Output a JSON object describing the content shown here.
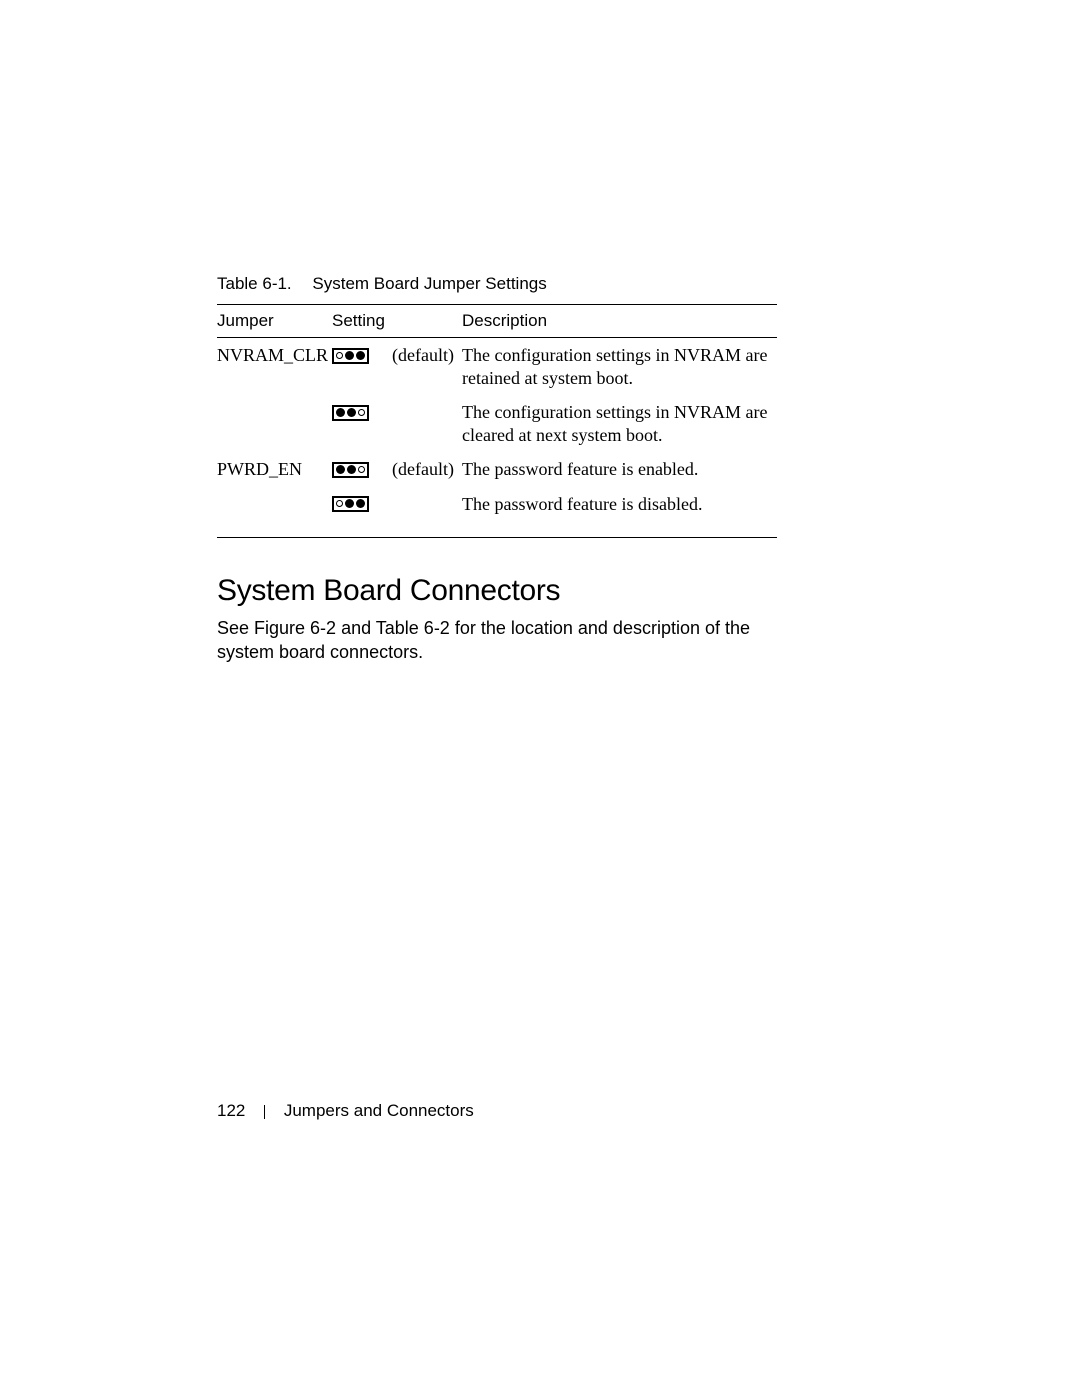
{
  "table": {
    "caption_number": "Table 6-1.",
    "caption_title": "System Board Jumper Settings",
    "columns": {
      "jumper": "Jumper",
      "setting": "Setting",
      "description": "Description"
    },
    "rows": [
      {
        "jumper": "NVRAM_CLR",
        "pins": [
          "open",
          "filled",
          "filled"
        ],
        "default": "(default)",
        "description": "The configuration settings in NVRAM are retained at system boot."
      },
      {
        "jumper": "",
        "pins": [
          "filled",
          "filled",
          "open"
        ],
        "default": "",
        "description": "The configuration settings in NVRAM are cleared at next system boot."
      },
      {
        "jumper": "PWRD_EN",
        "pins": [
          "filled",
          "filled",
          "open"
        ],
        "default": "(default)",
        "description": "The password feature is enabled."
      },
      {
        "jumper": "",
        "pins": [
          "open",
          "filled",
          "filled"
        ],
        "default": "",
        "description": "The password feature is disabled."
      }
    ]
  },
  "section": {
    "heading": "System Board Connectors",
    "paragraph": "See Figure 6-2 and Table 6-2 for the location and description of the system board connectors."
  },
  "footer": {
    "page_number": "122",
    "section_title": "Jumpers and Connectors"
  }
}
